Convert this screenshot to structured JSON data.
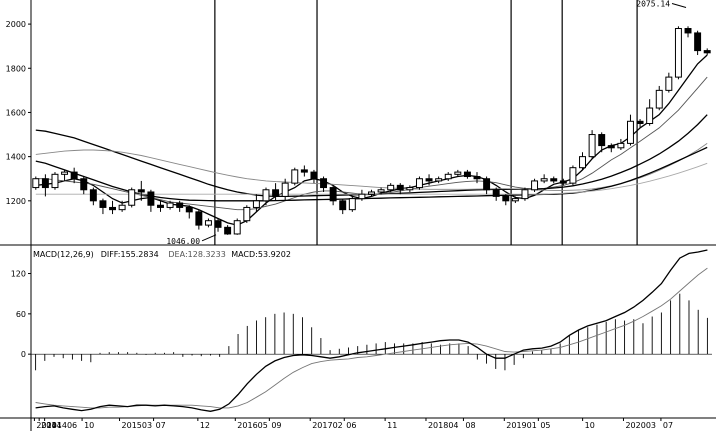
{
  "chart_data": {
    "type": "candlestick",
    "price_panel": {
      "ylim": [
        1000,
        2100
      ],
      "yticks": [
        "1200",
        "1400",
        "1600",
        "1800",
        "2000"
      ],
      "ytick_values": [
        1200,
        1400,
        1600,
        1800,
        2000
      ],
      "annotations": [
        {
          "label": "1046.00",
          "value": 1046,
          "bar_index": 40
        },
        {
          "label": "2075.14",
          "value": 2075.14,
          "bar_index": 143
        }
      ],
      "candles": [
        [
          1260,
          1300,
          1250,
          1310
        ],
        [
          1300,
          1260,
          1220,
          1320
        ],
        [
          1260,
          1320,
          1250,
          1330
        ],
        [
          1320,
          1330,
          1290,
          1340
        ],
        [
          1330,
          1300,
          1280,
          1350
        ],
        [
          1300,
          1250,
          1230,
          1310
        ],
        [
          1250,
          1200,
          1180,
          1260
        ],
        [
          1200,
          1170,
          1140,
          1210
        ],
        [
          1170,
          1160,
          1140,
          1200
        ],
        [
          1160,
          1180,
          1150,
          1200
        ],
        [
          1180,
          1250,
          1170,
          1260
        ],
        [
          1250,
          1240,
          1200,
          1290
        ],
        [
          1240,
          1180,
          1150,
          1250
        ],
        [
          1180,
          1170,
          1150,
          1200
        ],
        [
          1170,
          1190,
          1160,
          1200
        ],
        [
          1190,
          1170,
          1150,
          1200
        ],
        [
          1170,
          1150,
          1120,
          1180
        ],
        [
          1150,
          1090,
          1070,
          1160
        ],
        [
          1090,
          1110,
          1080,
          1120
        ],
        [
          1110,
          1080,
          1060,
          1120
        ],
        [
          1080,
          1050,
          1046,
          1090
        ],
        [
          1050,
          1110,
          1046,
          1120
        ],
        [
          1110,
          1170,
          1100,
          1180
        ],
        [
          1170,
          1200,
          1150,
          1230
        ],
        [
          1200,
          1250,
          1180,
          1260
        ],
        [
          1250,
          1220,
          1200,
          1280
        ],
        [
          1220,
          1280,
          1200,
          1300
        ],
        [
          1280,
          1340,
          1270,
          1350
        ],
        [
          1340,
          1330,
          1310,
          1360
        ],
        [
          1330,
          1300,
          1280,
          1340
        ],
        [
          1300,
          1260,
          1240,
          1310
        ],
        [
          1260,
          1200,
          1180,
          1270
        ],
        [
          1200,
          1160,
          1140,
          1210
        ],
        [
          1160,
          1210,
          1150,
          1220
        ],
        [
          1210,
          1230,
          1200,
          1250
        ],
        [
          1230,
          1240,
          1220,
          1250
        ],
        [
          1240,
          1250,
          1230,
          1260
        ],
        [
          1250,
          1270,
          1240,
          1280
        ],
        [
          1270,
          1250,
          1230,
          1280
        ],
        [
          1250,
          1260,
          1240,
          1270
        ],
        [
          1260,
          1300,
          1250,
          1310
        ],
        [
          1300,
          1290,
          1270,
          1320
        ],
        [
          1290,
          1300,
          1280,
          1310
        ],
        [
          1300,
          1320,
          1290,
          1330
        ],
        [
          1320,
          1330,
          1310,
          1340
        ],
        [
          1330,
          1310,
          1300,
          1340
        ],
        [
          1310,
          1300,
          1280,
          1330
        ],
        [
          1300,
          1250,
          1230,
          1310
        ],
        [
          1250,
          1220,
          1200,
          1260
        ],
        [
          1220,
          1200,
          1180,
          1230
        ],
        [
          1200,
          1210,
          1190,
          1220
        ],
        [
          1210,
          1250,
          1200,
          1260
        ],
        [
          1250,
          1290,
          1240,
          1300
        ],
        [
          1290,
          1300,
          1280,
          1320
        ],
        [
          1300,
          1290,
          1280,
          1310
        ],
        [
          1290,
          1280,
          1270,
          1300
        ],
        [
          1280,
          1350,
          1270,
          1360
        ],
        [
          1350,
          1400,
          1340,
          1420
        ],
        [
          1400,
          1500,
          1390,
          1520
        ],
        [
          1500,
          1450,
          1420,
          1510
        ],
        [
          1450,
          1440,
          1420,
          1460
        ],
        [
          1440,
          1460,
          1430,
          1480
        ],
        [
          1460,
          1560,
          1450,
          1590
        ],
        [
          1560,
          1550,
          1530,
          1570
        ],
        [
          1550,
          1620,
          1540,
          1660
        ],
        [
          1620,
          1700,
          1610,
          1720
        ],
        [
          1700,
          1760,
          1690,
          1780
        ],
        [
          1760,
          1980,
          1750,
          1990
        ],
        [
          1980,
          1960,
          1940,
          1990
        ],
        [
          1960,
          1880,
          1860,
          1970
        ],
        [
          1880,
          1870,
          1860,
          1890
        ]
      ],
      "ma_series": [
        {
          "color": "#000000",
          "values": [
            1270,
            1275,
            1280,
            1290,
            1300,
            1290,
            1270,
            1240,
            1210,
            1190,
            1200,
            1210,
            1215,
            1200,
            1185,
            1180,
            1175,
            1160,
            1140,
            1120,
            1100,
            1090,
            1110,
            1150,
            1190,
            1220,
            1240,
            1260,
            1290,
            1300,
            1290,
            1270,
            1240,
            1220,
            1210,
            1220,
            1235,
            1245,
            1255,
            1260,
            1270,
            1280,
            1290,
            1300,
            1310,
            1315,
            1310,
            1295,
            1270,
            1240,
            1215,
            1210,
            1225,
            1250,
            1275,
            1285,
            1300,
            1340,
            1390,
            1430,
            1450,
            1460,
            1490,
            1530,
            1560,
            1590,
            1640,
            1700,
            1760,
            1820,
            1860
          ]
        },
        {
          "color": "#555555",
          "values": [
            1300,
            1300,
            1295,
            1290,
            1285,
            1280,
            1275,
            1265,
            1255,
            1245,
            1235,
            1225,
            1215,
            1205,
            1195,
            1190,
            1185,
            1180,
            1175,
            1170,
            1165,
            1160,
            1160,
            1165,
            1175,
            1185,
            1200,
            1215,
            1230,
            1240,
            1245,
            1245,
            1240,
            1235,
            1230,
            1230,
            1232,
            1238,
            1245,
            1252,
            1260,
            1266,
            1272,
            1278,
            1284,
            1288,
            1290,
            1288,
            1282,
            1272,
            1262,
            1256,
            1254,
            1256,
            1262,
            1270,
            1282,
            1300,
            1325,
            1355,
            1385,
            1410,
            1440,
            1470,
            1500,
            1530,
            1570,
            1610,
            1660,
            1710,
            1760
          ]
        },
        {
          "color": "#000000",
          "values": [
            1520,
            1515,
            1505,
            1495,
            1485,
            1470,
            1455,
            1440,
            1425,
            1410,
            1395,
            1380,
            1365,
            1350,
            1335,
            1320,
            1305,
            1290,
            1275,
            1262,
            1250,
            1240,
            1232,
            1226,
            1222,
            1220,
            1220,
            1221,
            1222,
            1223,
            1224,
            1225,
            1226,
            1227,
            1228,
            1229,
            1230,
            1232,
            1234,
            1236,
            1238,
            1240,
            1242,
            1244,
            1246,
            1248,
            1250,
            1251,
            1252,
            1252,
            1252,
            1252,
            1253,
            1255,
            1258,
            1262,
            1268,
            1276,
            1286,
            1298,
            1312,
            1328,
            1346,
            1366,
            1388,
            1412,
            1440,
            1470,
            1505,
            1545,
            1590
          ]
        },
        {
          "color": "#888888",
          "values": [
            1410,
            1415,
            1420,
            1425,
            1428,
            1430,
            1430,
            1428,
            1425,
            1420,
            1413,
            1405,
            1395,
            1385,
            1375,
            1365,
            1355,
            1345,
            1335,
            1325,
            1316,
            1308,
            1300,
            1295,
            1290,
            1287,
            1285,
            1283,
            1281,
            1279,
            1277,
            1275,
            1272,
            1269,
            1266,
            1263,
            1260,
            1258,
            1256,
            1254,
            1253,
            1252,
            1252,
            1252,
            1252,
            1252,
            1253,
            1254,
            1255,
            1255,
            1254,
            1252,
            1250,
            1248,
            1247,
            1247,
            1248,
            1250,
            1254,
            1260,
            1268,
            1278,
            1290,
            1304,
            1320,
            1338,
            1358,
            1380,
            1404,
            1430,
            1460
          ]
        },
        {
          "color": "#000000",
          "values": [
            1380,
            1370,
            1355,
            1340,
            1325,
            1310,
            1295,
            1280,
            1265,
            1252,
            1240,
            1230,
            1222,
            1215,
            1210,
            1206,
            1203,
            1202,
            1201,
            1200,
            1200,
            1200,
            1200,
            1200,
            1200,
            1201,
            1202,
            1203,
            1204,
            1205,
            1206,
            1207,
            1208,
            1209,
            1210,
            1211,
            1212,
            1213,
            1214,
            1215,
            1216,
            1217,
            1218,
            1219,
            1220,
            1221,
            1222,
            1223,
            1224,
            1225,
            1226,
            1227,
            1228,
            1229,
            1230,
            1232,
            1235,
            1240,
            1247,
            1256,
            1266,
            1278,
            1292,
            1308,
            1325,
            1343,
            1362,
            1382,
            1402,
            1422,
            1442
          ]
        },
        {
          "color": "#aaaaaa",
          "values": [
            1230,
            1230,
            1230,
            1230,
            1230,
            1230,
            1230,
            1230,
            1230,
            1230,
            1230,
            1230,
            1230,
            1230,
            1230,
            1230,
            1230,
            1230,
            1230,
            1230,
            1230,
            1230,
            1230,
            1230,
            1230,
            1230,
            1230,
            1230,
            1230,
            1230,
            1230,
            1230,
            1230,
            1230,
            1230,
            1230,
            1230,
            1230,
            1230,
            1230,
            1230,
            1230,
            1230,
            1230,
            1230,
            1230,
            1230,
            1230,
            1230,
            1230,
            1230,
            1230,
            1230,
            1230,
            1232,
            1234,
            1237,
            1240,
            1244,
            1249,
            1255,
            1262,
            1270,
            1279,
            1289,
            1300,
            1312,
            1325,
            1339,
            1354,
            1370
          ]
        }
      ]
    },
    "macd_panel": {
      "legend": [
        {
          "text": "MACD(12,26,9)",
          "color": "#000000"
        },
        {
          "text": "DIFF:155.2834",
          "color": "#000000"
        },
        {
          "text": "DEA:128.3233",
          "color": "#555555"
        },
        {
          "text": "MACD:53.9202",
          "color": "#000000"
        }
      ],
      "ylim": [
        -95,
        155
      ],
      "yticks": [
        "0",
        "60",
        "120"
      ],
      "ytick_values": [
        0,
        60,
        120
      ],
      "diff": [
        -80,
        -78,
        -77,
        -80,
        -82,
        -84,
        -82,
        -78,
        -76,
        -77,
        -78,
        -76,
        -76,
        -77,
        -76,
        -77,
        -78,
        -80,
        -83,
        -85,
        -82,
        -74,
        -60,
        -44,
        -30,
        -18,
        -10,
        -5,
        -2,
        -1,
        -2,
        -4,
        -6,
        -4,
        -1,
        2,
        4,
        6,
        8,
        10,
        12,
        14,
        16,
        18,
        20,
        21,
        21,
        18,
        10,
        0,
        -6,
        -6,
        0,
        6,
        8,
        9,
        12,
        18,
        28,
        36,
        42,
        46,
        50,
        56,
        62,
        70,
        80,
        92,
        105,
        125,
        143,
        150,
        152,
        155
      ],
      "dea": [
        -72,
        -74,
        -76,
        -77,
        -78,
        -79,
        -80,
        -80,
        -79,
        -79,
        -78,
        -77,
        -76,
        -76,
        -76,
        -76,
        -76,
        -76,
        -77,
        -78,
        -80,
        -80,
        -77,
        -72,
        -64,
        -56,
        -46,
        -36,
        -27,
        -20,
        -14,
        -11,
        -9,
        -8,
        -7,
        -5,
        -4,
        -2,
        0,
        2,
        4,
        6,
        8,
        10,
        12,
        14,
        15,
        16,
        15,
        12,
        8,
        4,
        3,
        4,
        5,
        6,
        8,
        10,
        14,
        18,
        23,
        28,
        33,
        38,
        43,
        49,
        56,
        64,
        72,
        82,
        94,
        106,
        118,
        128
      ],
      "macd": [
        -24,
        -10,
        -4,
        -6,
        -8,
        -10,
        -12,
        2,
        3,
        3,
        3,
        2,
        -1,
        2,
        2,
        3,
        -4,
        -2,
        -3,
        -2,
        -4,
        12,
        30,
        42,
        50,
        55,
        60,
        62,
        60,
        55,
        40,
        24,
        6,
        8,
        10,
        12,
        14,
        16,
        18,
        16,
        16,
        16,
        18,
        16,
        14,
        16,
        16,
        12,
        -8,
        -14,
        -22,
        -24,
        -16,
        -6,
        4,
        6,
        8,
        16,
        28,
        36,
        40,
        44,
        48,
        52,
        50,
        52,
        46,
        56,
        62,
        80,
        90,
        80,
        66,
        54
      ]
    },
    "x_labels": [
      {
        "label": "2014",
        "pos": 0.005
      },
      {
        "label": "2014",
        "pos": 0.012
      },
      {
        "label": "201406",
        "pos": 0.02
      },
      {
        "label": "10",
        "pos": 0.075
      },
      {
        "label": "201503",
        "pos": 0.13
      },
      {
        "label": "07",
        "pos": 0.18
      },
      {
        "label": "12",
        "pos": 0.245
      },
      {
        "label": "201605",
        "pos": 0.3
      },
      {
        "label": "09",
        "pos": 0.35
      },
      {
        "label": "201702",
        "pos": 0.41
      },
      {
        "label": "06",
        "pos": 0.46
      },
      {
        "label": "11",
        "pos": 0.52
      },
      {
        "label": "201804",
        "pos": 0.58
      },
      {
        "label": "08",
        "pos": 0.635
      },
      {
        "label": "201901",
        "pos": 0.695
      },
      {
        "label": "05",
        "pos": 0.745
      },
      {
        "label": "10",
        "pos": 0.81
      },
      {
        "label": "202003",
        "pos": 0.87
      },
      {
        "label": "07",
        "pos": 0.925
      }
    ],
    "vertical_markers": [
      0.27,
      0.42,
      0.705,
      0.78,
      0.89
    ]
  }
}
